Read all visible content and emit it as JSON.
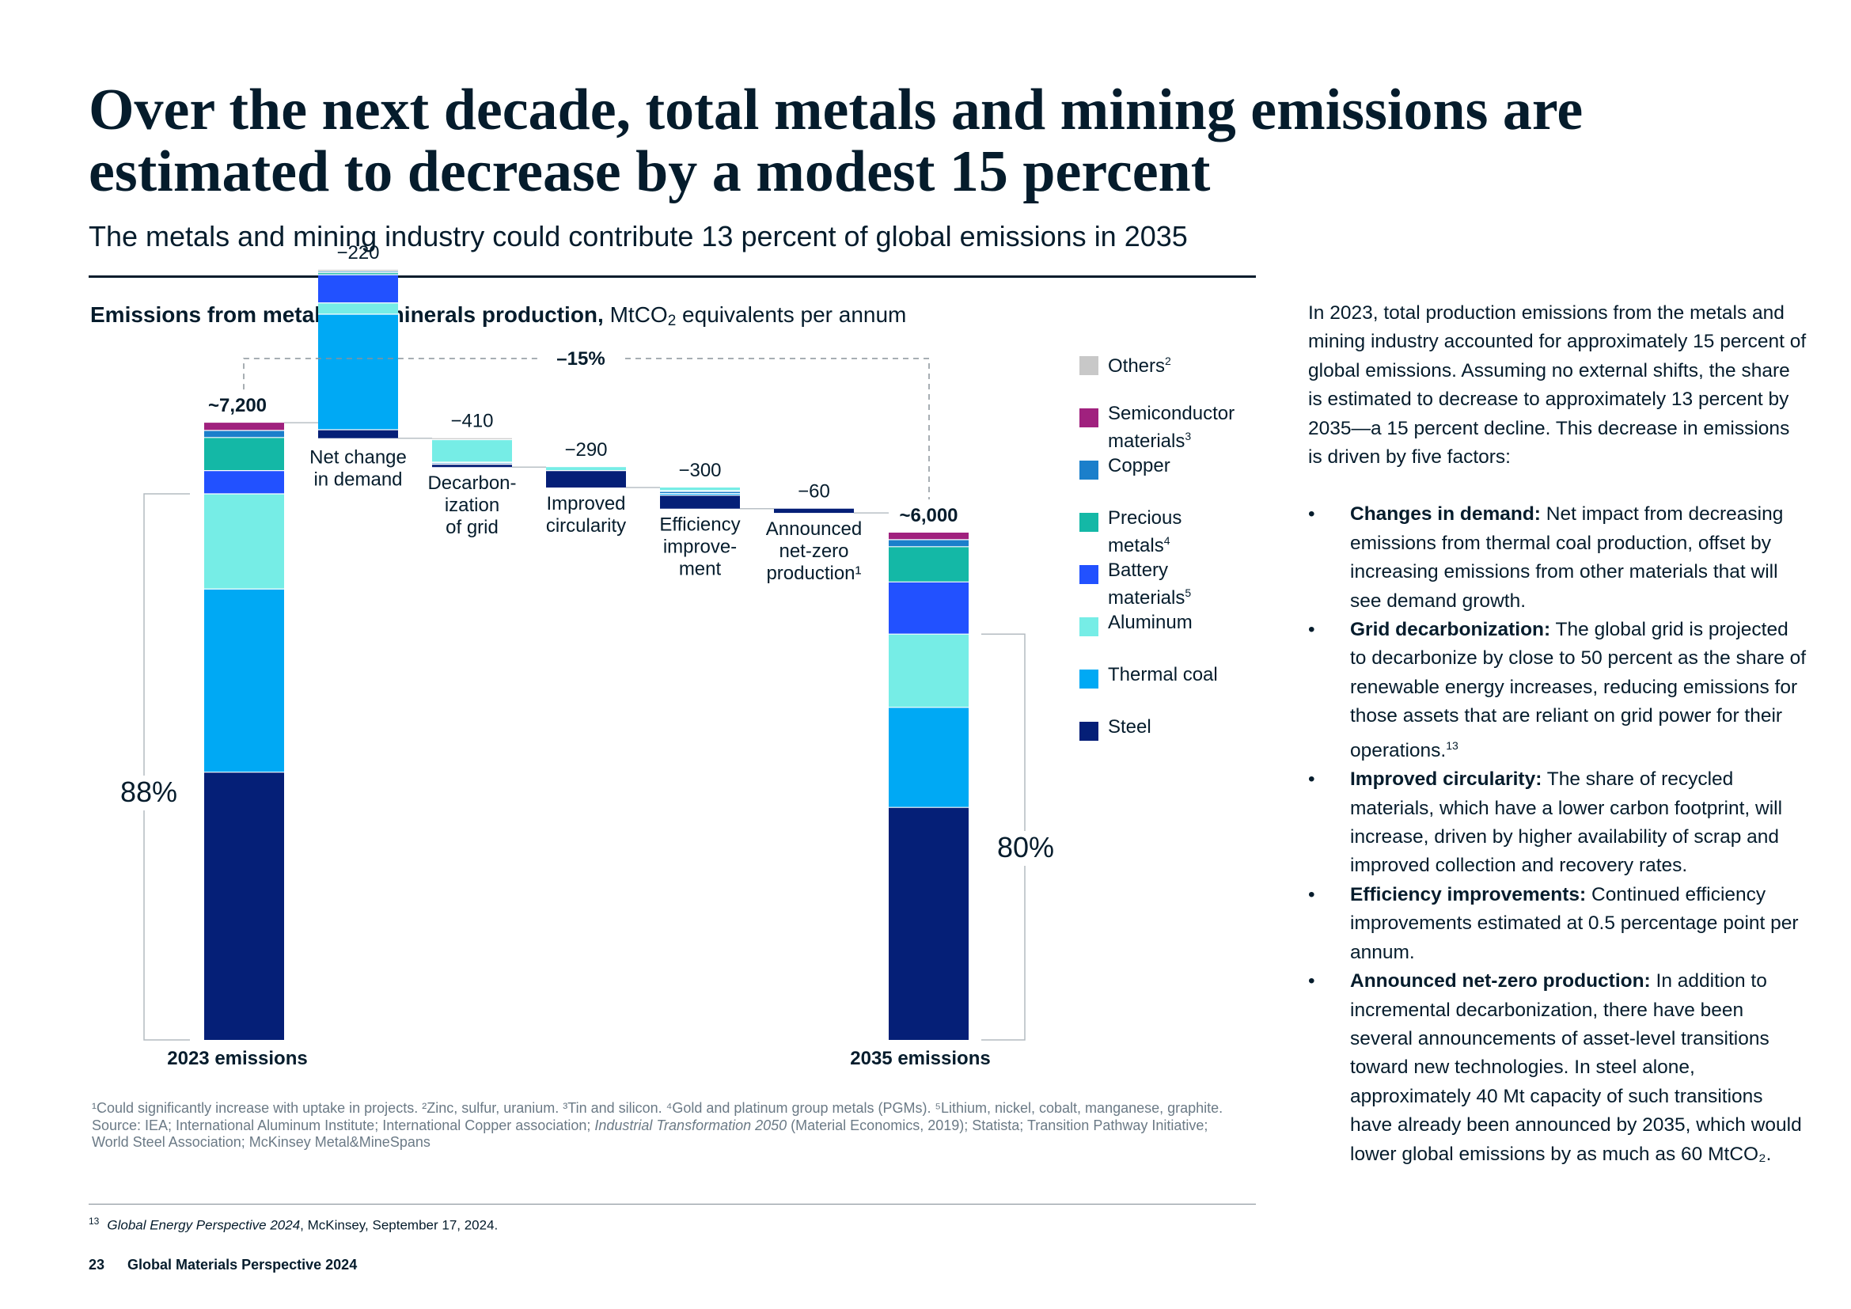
{
  "title": "Over the next decade, total metals and mining emissions are estimated to decrease by a modest 15 percent",
  "subtitle": "The metals and mining industry could contribute 13 percent of global emissions in 2035",
  "chart_heading": {
    "bold": "Emissions from metals and minerals production,",
    "unit_pre": "MtCO",
    "unit_sub": "2",
    "unit_post": " equivalents per annum"
  },
  "chart_data": {
    "type": "bar",
    "subtype": "waterfall-stacked",
    "title": "Emissions from metals and minerals production",
    "ylabel": "MtCO2 equivalents per annum",
    "ylim": [
      0,
      8000
    ],
    "grid": false,
    "legend_position": "right",
    "colors": {
      "Others": "#c8c8c8",
      "Semiconductor materials": "#a0217e",
      "Copper": "#1b7fcb",
      "Precious metals": "#14b8a6",
      "Battery materials": "#2251ff",
      "Aluminum": "#76ede6",
      "Thermal coal": "#00a9f4",
      "Steel": "#051f77"
    },
    "legend": [
      {
        "name": "Others",
        "sup": "2"
      },
      {
        "name": "Semiconductor materials",
        "label": "Semiconductor\nmaterials",
        "sup": "3"
      },
      {
        "name": "Copper",
        "label": "Copper",
        "sup": ""
      },
      {
        "name": "Precious metals",
        "label": "Precious\nmetals",
        "sup": "4"
      },
      {
        "name": "Battery materials",
        "label": "Battery\nmaterials",
        "sup": "5"
      },
      {
        "name": "Aluminum",
        "label": "Aluminum",
        "sup": ""
      },
      {
        "name": "Thermal coal",
        "label": "Thermal coal",
        "sup": ""
      },
      {
        "name": "Steel",
        "label": "Steel",
        "sup": ""
      }
    ],
    "totals": [
      {
        "category": "2023 emissions",
        "label": "~7,200",
        "value": 7200,
        "share_label": "88%",
        "segments": [
          {
            "series": "Steel",
            "value": 3800
          },
          {
            "series": "Thermal coal",
            "value": 2600
          },
          {
            "series": "Aluminum",
            "value": 1350
          },
          {
            "series": "Battery materials",
            "value": 330
          },
          {
            "series": "Precious metals",
            "value": 470
          },
          {
            "series": "Copper",
            "value": 100
          },
          {
            "series": "Semiconductor materials",
            "value": 110
          }
        ]
      },
      {
        "category": "2035 emissions",
        "label": "~6,000",
        "value": 6000,
        "share_label": "80%",
        "segments": [
          {
            "series": "Steel",
            "value": 3300
          },
          {
            "series": "Thermal coal",
            "value": 1420
          },
          {
            "series": "Aluminum",
            "value": 1040
          },
          {
            "series": "Battery materials",
            "value": 740
          },
          {
            "series": "Precious metals",
            "value": 500
          },
          {
            "series": "Copper",
            "value": 100
          },
          {
            "series": "Semiconductor materials",
            "value": 100
          }
        ]
      }
    ],
    "steps": [
      {
        "category": "Net change in demand",
        "label_lines": [
          "Net change",
          "in demand"
        ],
        "value_label": "−220",
        "delta": -220,
        "segments": [
          {
            "series": "Steel",
            "value": 120
          },
          {
            "series": "Thermal coal",
            "value": 1640
          },
          {
            "series": "Aluminum",
            "value": 160
          },
          {
            "series": "Battery materials",
            "value": 400
          },
          {
            "series": "Precious metals",
            "value": 30
          },
          {
            "series": "Copper",
            "value": 20
          },
          {
            "series": "Others",
            "value": 20
          }
        ]
      },
      {
        "category": "Decarbonization of grid",
        "label_lines": [
          "Decarbon-",
          "ization",
          "of grid"
        ],
        "value_label": "−410",
        "delta": -410,
        "segments": [
          {
            "series": "Steel",
            "value": 40
          },
          {
            "series": "Copper",
            "value": 20
          },
          {
            "series": "Battery materials",
            "value": 10
          },
          {
            "series": "Aluminum",
            "value": 320
          },
          {
            "series": "Others",
            "value": 20
          }
        ]
      },
      {
        "category": "Improved circularity",
        "label_lines": [
          "Improved",
          "circularity"
        ],
        "value_label": "−290",
        "delta": -290,
        "segments": [
          {
            "series": "Steel",
            "value": 240
          },
          {
            "series": "Aluminum",
            "value": 50
          }
        ]
      },
      {
        "category": "Efficiency improvement",
        "label_lines": [
          "Efficiency",
          "improve-",
          "ment"
        ],
        "value_label": "−300",
        "delta": -300,
        "segments": [
          {
            "series": "Steel",
            "value": 190
          },
          {
            "series": "Thermal coal",
            "value": 25
          },
          {
            "series": "Copper",
            "value": 30
          },
          {
            "series": "Battery materials",
            "value": 10
          },
          {
            "series": "Aluminum",
            "value": 45
          }
        ]
      },
      {
        "category": "Announced net-zero production",
        "label_lines": [
          "Announced",
          "net-zero",
          "production¹"
        ],
        "value_label": "−60",
        "delta": -60,
        "segments": [
          {
            "series": "Steel",
            "value": 60
          }
        ]
      }
    ],
    "change_label": "–15%"
  },
  "side_panel": {
    "intro": "In 2023, total production emissions from the metals and mining industry accounted for approximately 15 percent of global emissions. Assuming no external shifts, the share is estimated to decrease to approximately 13 percent by 2035—a 15 percent decline. This decrease in emissions is driven by five factors:",
    "bullet_char": "•",
    "bullets": [
      {
        "lead": "Changes in demand:",
        "text": " Net impact from decreasing emissions from thermal coal production, offset by increasing emissions from other materials that will see demand growth.",
        "sup": ""
      },
      {
        "lead": "Grid decarbonization:",
        "text": " The global grid is projected to decarbonize by close to 50 percent as the share of renewable energy increases, reducing emissions for those assets that are reliant on grid power for their operations.",
        "sup": "13"
      },
      {
        "lead": "Improved circularity:",
        "text": " The share of recycled materials, which have a lower carbon footprint, will increase, driven by higher availability of scrap and improved collection and recovery rates.",
        "sup": ""
      },
      {
        "lead": "Efficiency improvements:",
        "text": " Continued efficiency improvements estimated at 0.5 percentage point per annum.",
        "sup": ""
      },
      {
        "lead": "Announced net-zero production:",
        "text": " In addition to incremental decarbonization, there have been several announcements of asset-level transitions toward new technologies. In steel alone, approximately 40 Mt capacity of such transitions have already been announced by 2035, which would lower global emissions by as much as 60 MtCO₂.",
        "sup": ""
      }
    ]
  },
  "footnotes": {
    "notes": "¹Could significantly increase with uptake in projects. ²Zinc, sulfur, uranium. ³Tin and silicon. ⁴Gold and platinum group metals (PGMs). ⁵Lithium, nickel, cobalt, manganese, graphite.",
    "source_pre": "Source: IEA; International Aluminum Institute; International Copper association; ",
    "source_italic": "Industrial Transformation 2050",
    "source_post": " (Material Economics, 2019); Statista; Transition Pathway Initiative; World Steel Association; McKinsey Metal&MineSpans"
  },
  "reference": {
    "number": "13",
    "italic": "Global Energy Perspective 2024",
    "text": ", McKinsey, September 17, 2024."
  },
  "page_footer": {
    "page_number": "23",
    "publication": "Global Materials Perspective 2024"
  }
}
